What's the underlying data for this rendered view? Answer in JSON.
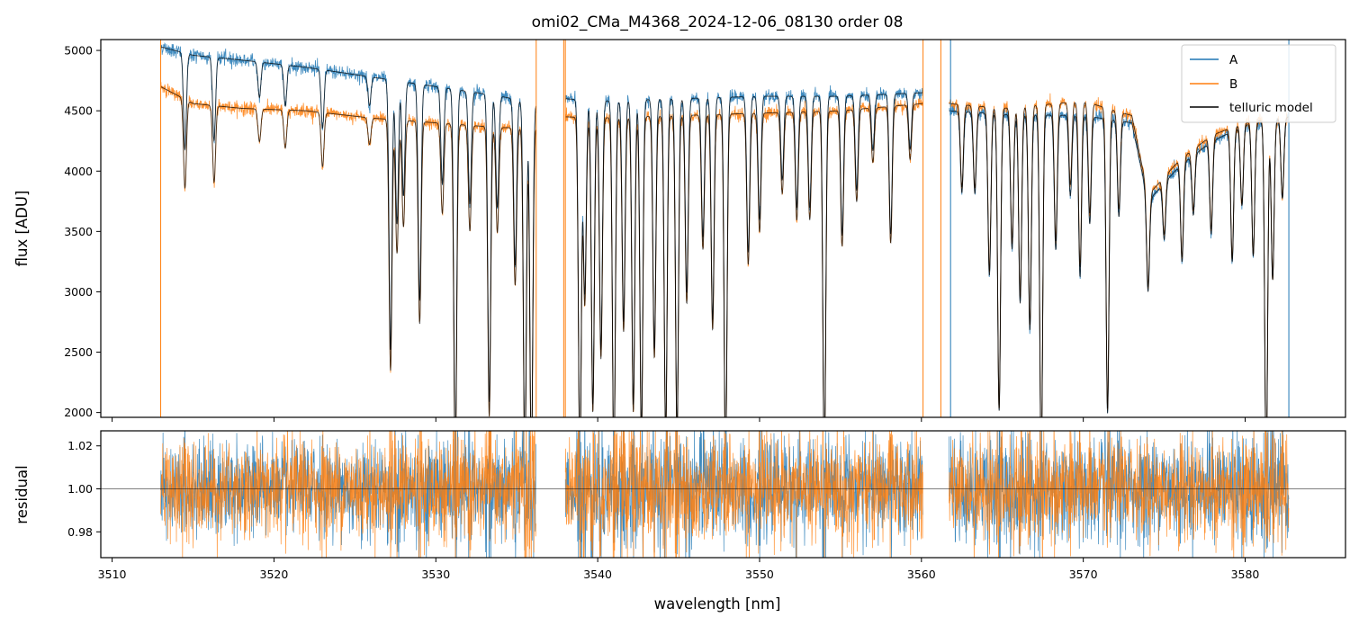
{
  "chart_data": [
    {
      "type": "line",
      "title": "omi02_CMa_M4368_2024-12-06_08130  order 08",
      "xlabel": "",
      "ylabel": "flux [ADU]",
      "xlim": [
        3509.3,
        3586.2
      ],
      "ylim": [
        1960,
        5090
      ],
      "x_ticks": [
        3510,
        3520,
        3530,
        3540,
        3550,
        3560,
        3570,
        3580
      ],
      "x_tick_labels_shown": false,
      "y_ticks": [
        2000,
        2500,
        3000,
        3500,
        4000,
        4500,
        5000
      ],
      "y_tick_labels": [
        "2000",
        "2500",
        "3000",
        "3500",
        "4000",
        "4500",
        "5000"
      ],
      "grid": false,
      "legend": {
        "placement": "top-right",
        "entries": [
          "A",
          "B",
          "telluric model"
        ]
      },
      "series": [
        {
          "name": "A",
          "color": "#1f77b4",
          "x_range": [
            3513.0,
            3582.7
          ],
          "gaps": [
            [
              3536.2,
              3538.0
            ],
            [
              3560.1,
              3561.7
            ]
          ],
          "continuum_points": [
            [
              3513.0,
              5030
            ],
            [
              3515,
              4960
            ],
            [
              3518,
              4920
            ],
            [
              3522,
              4860
            ],
            [
              3526,
              4780
            ],
            [
              3530,
              4700
            ],
            [
              3534,
              4620
            ],
            [
              3536.2,
              4560
            ],
            [
              3538.0,
              4600
            ],
            [
              3540,
              4580
            ],
            [
              3545,
              4600
            ],
            [
              3550,
              4620
            ],
            [
              3555,
              4620
            ],
            [
              3560.1,
              4650
            ],
            [
              3561.7,
              4500
            ],
            [
              3565,
              4470
            ],
            [
              3570,
              4460
            ],
            [
              3573,
              4400
            ],
            [
              3574,
              3750
            ],
            [
              3576,
              4050
            ],
            [
              3578,
              4250
            ],
            [
              3580,
              4380
            ],
            [
              3582.7,
              4450
            ]
          ]
        },
        {
          "name": "B",
          "color": "#ff7f0e",
          "x_range": [
            3513.0,
            3582.7
          ],
          "gaps": [
            [
              3536.2,
              3538.0
            ],
            [
              3560.1,
              3561.7
            ]
          ],
          "continuum_points": [
            [
              3513.0,
              4700
            ],
            [
              3515,
              4560
            ],
            [
              3518,
              4520
            ],
            [
              3522,
              4500
            ],
            [
              3526,
              4440
            ],
            [
              3530,
              4400
            ],
            [
              3534,
              4360
            ],
            [
              3536.2,
              4360
            ],
            [
              3538.0,
              4450
            ],
            [
              3540,
              4440
            ],
            [
              3545,
              4460
            ],
            [
              3550,
              4480
            ],
            [
              3555,
              4500
            ],
            [
              3560.1,
              4560
            ],
            [
              3561.7,
              4560
            ],
            [
              3565,
              4520
            ],
            [
              3570,
              4580
            ],
            [
              3573,
              4460
            ],
            [
              3574,
              3800
            ],
            [
              3576,
              4100
            ],
            [
              3578,
              4300
            ],
            [
              3580,
              4400
            ],
            [
              3582.7,
              4450
            ]
          ]
        },
        {
          "name": "telluric model",
          "color": "#000000"
        }
      ],
      "absorption_lines": [
        {
          "x": 3514.5,
          "depth": 0.16
        },
        {
          "x": 3516.3,
          "depth": 0.14
        },
        {
          "x": 3519.1,
          "depth": 0.06
        },
        {
          "x": 3520.7,
          "depth": 0.07
        },
        {
          "x": 3523.0,
          "depth": 0.1
        },
        {
          "x": 3525.9,
          "depth": 0.05
        },
        {
          "x": 3527.2,
          "depth": 0.47
        },
        {
          "x": 3527.6,
          "depth": 0.25
        },
        {
          "x": 3528.0,
          "depth": 0.2
        },
        {
          "x": 3529.0,
          "depth": 0.38
        },
        {
          "x": 3530.4,
          "depth": 0.17
        },
        {
          "x": 3531.2,
          "depth": 0.65
        },
        {
          "x": 3532.1,
          "depth": 0.2
        },
        {
          "x": 3533.3,
          "depth": 0.55
        },
        {
          "x": 3533.8,
          "depth": 0.2
        },
        {
          "x": 3534.9,
          "depth": 0.3
        },
        {
          "x": 3535.5,
          "depth": 0.65
        },
        {
          "x": 3535.9,
          "depth": 0.65
        },
        {
          "x": 3538.9,
          "depth": 0.65
        },
        {
          "x": 3539.2,
          "depth": 0.35
        },
        {
          "x": 3539.7,
          "depth": 0.55
        },
        {
          "x": 3540.2,
          "depth": 0.45
        },
        {
          "x": 3541.0,
          "depth": 0.65
        },
        {
          "x": 3541.6,
          "depth": 0.4
        },
        {
          "x": 3542.2,
          "depth": 0.55
        },
        {
          "x": 3542.7,
          "depth": 0.6
        },
        {
          "x": 3543.5,
          "depth": 0.45
        },
        {
          "x": 3544.2,
          "depth": 0.6
        },
        {
          "x": 3544.9,
          "depth": 0.6
        },
        {
          "x": 3545.5,
          "depth": 0.35
        },
        {
          "x": 3546.5,
          "depth": 0.25
        },
        {
          "x": 3547.1,
          "depth": 0.4
        },
        {
          "x": 3547.9,
          "depth": 0.65
        },
        {
          "x": 3549.3,
          "depth": 0.28
        },
        {
          "x": 3550.0,
          "depth": 0.22
        },
        {
          "x": 3551.4,
          "depth": 0.15
        },
        {
          "x": 3552.3,
          "depth": 0.2
        },
        {
          "x": 3553.1,
          "depth": 0.2
        },
        {
          "x": 3554.0,
          "depth": 0.65
        },
        {
          "x": 3555.1,
          "depth": 0.25
        },
        {
          "x": 3556.0,
          "depth": 0.17
        },
        {
          "x": 3557.0,
          "depth": 0.1
        },
        {
          "x": 3558.1,
          "depth": 0.25
        },
        {
          "x": 3559.3,
          "depth": 0.1
        },
        {
          "x": 3562.5,
          "depth": 0.15
        },
        {
          "x": 3563.3,
          "depth": 0.15
        },
        {
          "x": 3564.2,
          "depth": 0.3
        },
        {
          "x": 3564.8,
          "depth": 0.55
        },
        {
          "x": 3565.6,
          "depth": 0.25
        },
        {
          "x": 3566.1,
          "depth": 0.35
        },
        {
          "x": 3566.7,
          "depth": 0.4
        },
        {
          "x": 3567.4,
          "depth": 0.65
        },
        {
          "x": 3568.3,
          "depth": 0.25
        },
        {
          "x": 3569.2,
          "depth": 0.15
        },
        {
          "x": 3569.8,
          "depth": 0.3
        },
        {
          "x": 3570.4,
          "depth": 0.2
        },
        {
          "x": 3571.5,
          "depth": 0.55
        },
        {
          "x": 3572.2,
          "depth": 0.18
        },
        {
          "x": 3574.0,
          "depth": 0.2
        },
        {
          "x": 3575.0,
          "depth": 0.12
        },
        {
          "x": 3576.1,
          "depth": 0.2
        },
        {
          "x": 3576.8,
          "depth": 0.12
        },
        {
          "x": 3577.9,
          "depth": 0.18
        },
        {
          "x": 3579.2,
          "depth": 0.25
        },
        {
          "x": 3579.8,
          "depth": 0.15
        },
        {
          "x": 3580.5,
          "depth": 0.25
        },
        {
          "x": 3581.3,
          "depth": 0.65
        },
        {
          "x": 3581.7,
          "depth": 0.3
        },
        {
          "x": 3582.3,
          "depth": 0.15
        }
      ],
      "vertical_spikes": [
        {
          "x": 3513.0,
          "color": "#ff7f0e"
        },
        {
          "x": 3536.2,
          "color": "#ff7f0e"
        },
        {
          "x": 3537.9,
          "color": "#ff7f0e"
        },
        {
          "x": 3538.0,
          "color": "#ff7f0e"
        },
        {
          "x": 3560.1,
          "color": "#ff7f0e"
        },
        {
          "x": 3561.2,
          "color": "#ff7f0e"
        },
        {
          "x": 3561.8,
          "color": "#1f77b4"
        },
        {
          "x": 3582.7,
          "color": "#1f77b4"
        }
      ]
    },
    {
      "type": "line",
      "title": "",
      "xlabel": "wavelength [nm]",
      "ylabel": "residual",
      "xlim": [
        3509.3,
        3586.2
      ],
      "ylim": [
        0.968,
        1.027
      ],
      "x_ticks": [
        3510,
        3520,
        3530,
        3540,
        3550,
        3560,
        3570,
        3580
      ],
      "x_tick_labels": [
        "3510",
        "3520",
        "3530",
        "3540",
        "3550",
        "3560",
        "3570",
        "3580"
      ],
      "y_ticks": [
        0.98,
        1.0,
        1.02
      ],
      "y_tick_labels": [
        "0.98",
        "1.00",
        "1.02"
      ],
      "reference_line": 1.0,
      "grid": false,
      "series": [
        {
          "name": "A",
          "color": "#1f77b4",
          "x_range": [
            3513.0,
            3582.7
          ],
          "gaps": [
            [
              3536.2,
              3538.0
            ],
            [
              3560.1,
              3561.7
            ]
          ],
          "scatter_std": 0.011
        },
        {
          "name": "B",
          "color": "#ff7f0e",
          "x_range": [
            3513.0,
            3582.7
          ],
          "gaps": [
            [
              3536.2,
              3538.0
            ],
            [
              3560.1,
              3561.7
            ]
          ],
          "scatter_std": 0.011
        }
      ]
    }
  ]
}
